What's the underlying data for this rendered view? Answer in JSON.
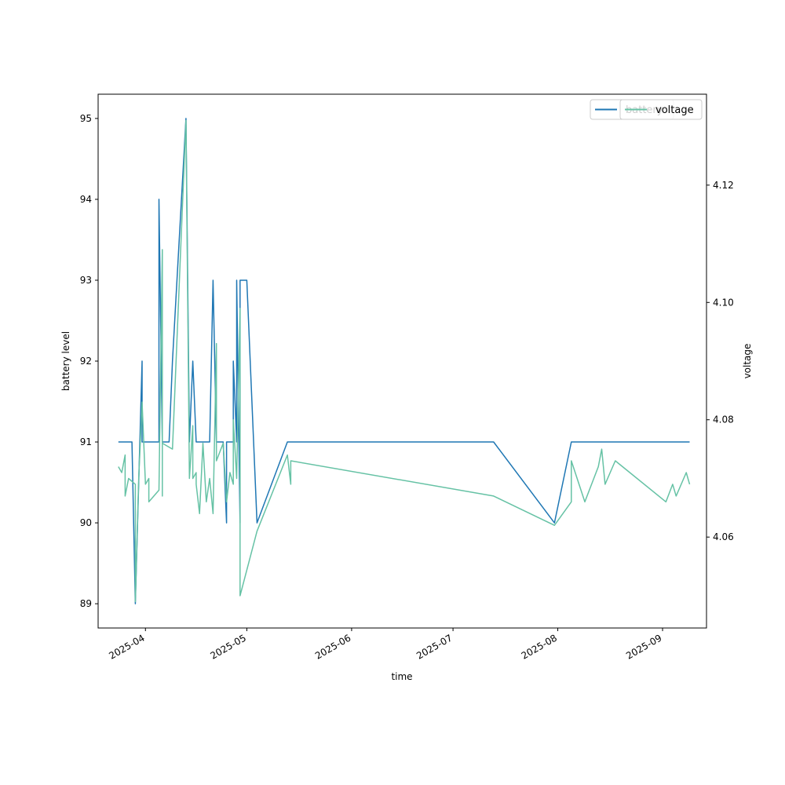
{
  "chart_data": {
    "type": "line",
    "title": "",
    "xlabel": "time",
    "ylabel": "battery level",
    "y2label": "voltage",
    "xlim": [
      "2025-03-18",
      "2025-09-14"
    ],
    "ylim": [
      88.7,
      95.3
    ],
    "y2lim": [
      4.0445,
      4.1355
    ],
    "x_ticks": [
      "2025-04",
      "2025-05",
      "2025-06",
      "2025-07",
      "2025-08",
      "2025-09"
    ],
    "y_ticks": [
      89,
      90,
      91,
      92,
      93,
      94,
      95
    ],
    "y2_ticks": [
      4.06,
      4.08,
      4.1,
      4.12
    ],
    "grid": false,
    "legend": {
      "placement": "upper right"
    },
    "series": [
      {
        "name": "battery",
        "axis": "left",
        "color": "#1f77b4",
        "points": [
          [
            "2025-03-24",
            91
          ],
          [
            "2025-03-28",
            91
          ],
          [
            "2025-03-29",
            89
          ],
          [
            "2025-03-31",
            92
          ],
          [
            "2025-03-31",
            91
          ],
          [
            "2025-04-05",
            91
          ],
          [
            "2025-04-05",
            94
          ],
          [
            "2025-04-06",
            91
          ],
          [
            "2025-04-08",
            91
          ],
          [
            "2025-04-09",
            92
          ],
          [
            "2025-04-13",
            95
          ],
          [
            "2025-04-14",
            91
          ],
          [
            "2025-04-15",
            92
          ],
          [
            "2025-04-16",
            91
          ],
          [
            "2025-04-20",
            91
          ],
          [
            "2025-04-21",
            93
          ],
          [
            "2025-04-22",
            91
          ],
          [
            "2025-04-24",
            91
          ],
          [
            "2025-04-25",
            90
          ],
          [
            "2025-04-25",
            91
          ],
          [
            "2025-04-27",
            91
          ],
          [
            "2025-04-27",
            92
          ],
          [
            "2025-04-28",
            91
          ],
          [
            "2025-04-28",
            93
          ],
          [
            "2025-04-29",
            90
          ],
          [
            "2025-04-29",
            93
          ],
          [
            "2025-05-01",
            93
          ],
          [
            "2025-05-04",
            90
          ],
          [
            "2025-05-13",
            91
          ],
          [
            "2025-07-13",
            91
          ],
          [
            "2025-07-31",
            90
          ],
          [
            "2025-08-05",
            91
          ],
          [
            "2025-09-09",
            91
          ]
        ]
      },
      {
        "name": "voltage",
        "axis": "right",
        "color": "#66c2a5",
        "points": [
          [
            "2025-03-24",
            4.072
          ],
          [
            "2025-03-25",
            4.071
          ],
          [
            "2025-03-26",
            4.074
          ],
          [
            "2025-03-26",
            4.067
          ],
          [
            "2025-03-27",
            4.07
          ],
          [
            "2025-03-29",
            4.069
          ],
          [
            "2025-03-29",
            4.049
          ],
          [
            "2025-03-30",
            4.07
          ],
          [
            "2025-03-31",
            4.083
          ],
          [
            "2025-04-01",
            4.069
          ],
          [
            "2025-04-02",
            4.07
          ],
          [
            "2025-04-02",
            4.066
          ],
          [
            "2025-04-05",
            4.068
          ],
          [
            "2025-04-06",
            4.109
          ],
          [
            "2025-04-06",
            4.067
          ],
          [
            "2025-04-06",
            4.076
          ],
          [
            "2025-04-09",
            4.075
          ],
          [
            "2025-04-13",
            4.131
          ],
          [
            "2025-04-14",
            4.07
          ],
          [
            "2025-04-15",
            4.079
          ],
          [
            "2025-04-15",
            4.07
          ],
          [
            "2025-04-16",
            4.071
          ],
          [
            "2025-04-16",
            4.069
          ],
          [
            "2025-04-17",
            4.064
          ],
          [
            "2025-04-18",
            4.076
          ],
          [
            "2025-04-19",
            4.066
          ],
          [
            "2025-04-20",
            4.07
          ],
          [
            "2025-04-21",
            4.064
          ],
          [
            "2025-04-22",
            4.093
          ],
          [
            "2025-04-22",
            4.073
          ],
          [
            "2025-04-24",
            4.076
          ],
          [
            "2025-04-25",
            4.066
          ],
          [
            "2025-04-26",
            4.071
          ],
          [
            "2025-04-27",
            4.069
          ],
          [
            "2025-04-27",
            4.08
          ],
          [
            "2025-04-28",
            4.07
          ],
          [
            "2025-04-29",
            4.099
          ],
          [
            "2025-04-29",
            4.05
          ],
          [
            "2025-05-04",
            4.061
          ],
          [
            "2025-05-13",
            4.074
          ],
          [
            "2025-05-14",
            4.069
          ],
          [
            "2025-05-14",
            4.073
          ],
          [
            "2025-07-13",
            4.067
          ],
          [
            "2025-07-31",
            4.062
          ],
          [
            "2025-08-05",
            4.066
          ],
          [
            "2025-08-05",
            4.073
          ],
          [
            "2025-08-09",
            4.066
          ],
          [
            "2025-08-13",
            4.072
          ],
          [
            "2025-08-14",
            4.075
          ],
          [
            "2025-08-15",
            4.069
          ],
          [
            "2025-08-18",
            4.073
          ],
          [
            "2025-09-02",
            4.066
          ],
          [
            "2025-09-04",
            4.069
          ],
          [
            "2025-09-05",
            4.067
          ],
          [
            "2025-09-08",
            4.071
          ],
          [
            "2025-09-09",
            4.069
          ]
        ]
      }
    ]
  }
}
